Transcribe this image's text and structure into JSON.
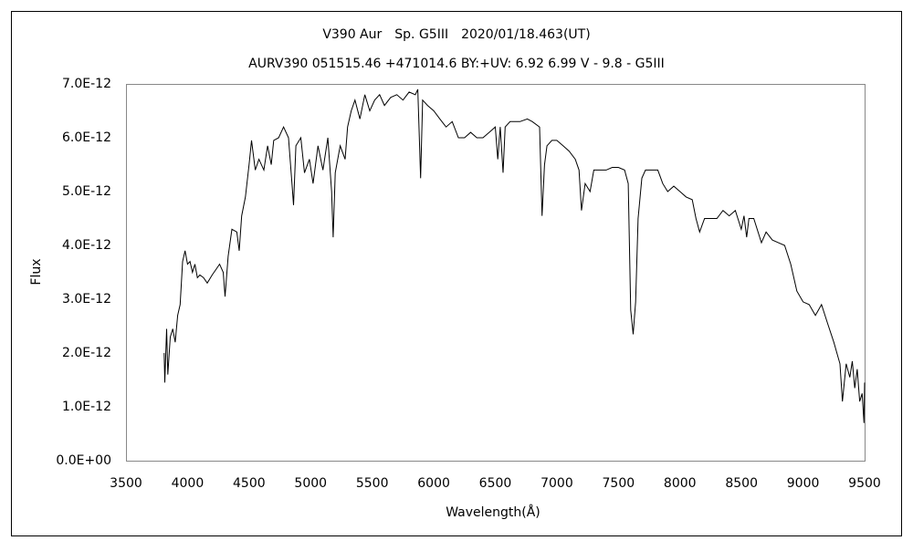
{
  "chart_data": {
    "type": "line",
    "title": "V390 Aur　Sp. G5III　2020/01/18.463(UT)",
    "subtitle": "AURV390 051515.46 +471014.6 BY:+UV: 6.92 6.99 V - 9.8 - G5III",
    "x_label": "Wavelength(Å)",
    "y_label": "Flux",
    "color": "#000000",
    "grid": false,
    "xlim": [
      3500,
      9500
    ],
    "xticks": [
      3500,
      4000,
      4500,
      5000,
      5500,
      6000,
      6500,
      7000,
      7500,
      8000,
      8500,
      9000,
      9500
    ],
    "ylim": [
      0,
      7e-12
    ],
    "yticks": [
      {
        "value": 0,
        "label": "0.0E+00"
      },
      {
        "value": 1e-12,
        "label": "1.0E-12"
      },
      {
        "value": 2e-12,
        "label": "2.0E-12"
      },
      {
        "value": 3e-12,
        "label": "3.0E-12"
      },
      {
        "value": 4e-12,
        "label": "4.0E-12"
      },
      {
        "value": 5e-12,
        "label": "5.0E-12"
      },
      {
        "value": 6e-12,
        "label": "6.0E-12"
      },
      {
        "value": 7e-12,
        "label": "7.0E-12"
      }
    ],
    "x": [
      3810,
      3815,
      3830,
      3840,
      3860,
      3880,
      3900,
      3920,
      3940,
      3960,
      3980,
      4000,
      4020,
      4040,
      4060,
      4080,
      4100,
      4130,
      4160,
      4200,
      4230,
      4260,
      4290,
      4305,
      4330,
      4360,
      4400,
      4420,
      4440,
      4470,
      4500,
      4520,
      4550,
      4580,
      4620,
      4650,
      4680,
      4700,
      4740,
      4780,
      4820,
      4850,
      4861,
      4880,
      4920,
      4950,
      4990,
      5020,
      5060,
      5100,
      5140,
      5170,
      5183,
      5200,
      5240,
      5280,
      5300,
      5330,
      5360,
      5400,
      5440,
      5480,
      5520,
      5560,
      5600,
      5650,
      5700,
      5750,
      5800,
      5850,
      5870,
      5893,
      5910,
      5950,
      6000,
      6050,
      6100,
      6150,
      6200,
      6250,
      6300,
      6350,
      6400,
      6450,
      6500,
      6520,
      6540,
      6563,
      6580,
      6620,
      6700,
      6760,
      6800,
      6860,
      6880,
      6900,
      6920,
      6960,
      7000,
      7050,
      7100,
      7150,
      7180,
      7200,
      7230,
      7270,
      7300,
      7350,
      7400,
      7450,
      7500,
      7550,
      7580,
      7600,
      7620,
      7640,
      7660,
      7690,
      7720,
      7780,
      7820,
      7860,
      7900,
      7950,
      8000,
      8050,
      8100,
      8130,
      8160,
      8200,
      8250,
      8300,
      8350,
      8400,
      8450,
      8498,
      8520,
      8542,
      8560,
      8600,
      8662,
      8700,
      8750,
      8800,
      8850,
      8900,
      8950,
      9000,
      9050,
      9100,
      9150,
      9200,
      9250,
      9300,
      9320,
      9350,
      9380,
      9400,
      9420,
      9440,
      9460,
      9480,
      9495,
      9500
    ],
    "values": [
      2e-12,
      1.45e-12,
      2.45e-12,
      1.6e-12,
      2.3e-12,
      2.45e-12,
      2.2e-12,
      2.7e-12,
      2.9e-12,
      3.7e-12,
      3.9e-12,
      3.65e-12,
      3.7e-12,
      3.5e-12,
      3.65e-12,
      3.4e-12,
      3.45e-12,
      3.4e-12,
      3.3e-12,
      3.45e-12,
      3.55e-12,
      3.65e-12,
      3.5e-12,
      3.05e-12,
      3.8e-12,
      4.3e-12,
      4.25e-12,
      3.9e-12,
      4.55e-12,
      4.9e-12,
      5.5e-12,
      5.95e-12,
      5.4e-12,
      5.6e-12,
      5.4e-12,
      5.85e-12,
      5.5e-12,
      5.95e-12,
      6e-12,
      6.2e-12,
      6e-12,
      5.1e-12,
      4.75e-12,
      5.85e-12,
      6e-12,
      5.35e-12,
      5.6e-12,
      5.15e-12,
      5.85e-12,
      5.4e-12,
      6e-12,
      5e-12,
      4.15e-12,
      5.35e-12,
      5.85e-12,
      5.6e-12,
      6.2e-12,
      6.5e-12,
      6.7e-12,
      6.35e-12,
      6.8e-12,
      6.5e-12,
      6.7e-12,
      6.8e-12,
      6.6e-12,
      6.75e-12,
      6.8e-12,
      6.7e-12,
      6.85e-12,
      6.8e-12,
      6.9e-12,
      5.25e-12,
      6.7e-12,
      6.6e-12,
      6.5e-12,
      6.35e-12,
      6.2e-12,
      6.3e-12,
      6e-12,
      6e-12,
      6.1e-12,
      6e-12,
      6e-12,
      6.1e-12,
      6.2e-12,
      5.6e-12,
      6.2e-12,
      5.35e-12,
      6.2e-12,
      6.3e-12,
      6.3e-12,
      6.35e-12,
      6.3e-12,
      6.2e-12,
      4.55e-12,
      5.5e-12,
      5.85e-12,
      5.95e-12,
      5.95e-12,
      5.85e-12,
      5.75e-12,
      5.6e-12,
      5.4e-12,
      4.65e-12,
      5.15e-12,
      5e-12,
      5.4e-12,
      5.4e-12,
      5.4e-12,
      5.45e-12,
      5.45e-12,
      5.4e-12,
      5.15e-12,
      2.8e-12,
      2.35e-12,
      2.95e-12,
      4.5e-12,
      5.25e-12,
      5.4e-12,
      5.4e-12,
      5.4e-12,
      5.15e-12,
      5e-12,
      5.1e-12,
      5e-12,
      4.9e-12,
      4.85e-12,
      4.5e-12,
      4.25e-12,
      4.5e-12,
      4.5e-12,
      4.5e-12,
      4.65e-12,
      4.55e-12,
      4.65e-12,
      4.3e-12,
      4.55e-12,
      4.15e-12,
      4.5e-12,
      4.5e-12,
      4.05e-12,
      4.25e-12,
      4.1e-12,
      4.05e-12,
      4e-12,
      3.65e-12,
      3.15e-12,
      2.95e-12,
      2.9e-12,
      2.7e-12,
      2.9e-12,
      2.55e-12,
      2.2e-12,
      1.8e-12,
      1.1e-12,
      1.8e-12,
      1.55e-12,
      1.85e-12,
      1.35e-12,
      1.7e-12,
      1.1e-12,
      1.25e-12,
      7e-13,
      1.45e-12
    ]
  }
}
